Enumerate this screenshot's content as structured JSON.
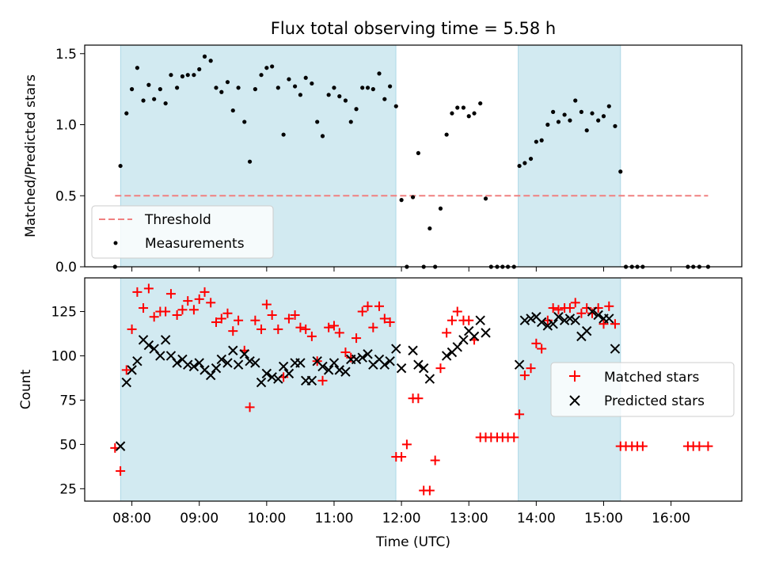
{
  "chart_data": [
    {
      "type": "scatter",
      "panel": "top",
      "title": "Flux total observing time = 5.58 h",
      "xlabel": "",
      "ylabel": "Matched/Predicted stars",
      "xlim": [
        7.3,
        17.05
      ],
      "ylim": [
        0,
        1.56
      ],
      "yticks": [
        0.0,
        0.5,
        1.0,
        1.5
      ],
      "ytick_labels": [
        "0.0",
        "0.5",
        "1.0",
        "1.5"
      ],
      "shaded_regions": [
        [
          7.833,
          11.917
        ],
        [
          13.733,
          15.25
        ]
      ],
      "shade_color": "#add8e6",
      "threshold": {
        "name": "Threshold",
        "y": 0.5,
        "x_range": [
          7.75,
          16.55
        ],
        "color": "#f08080"
      },
      "legend": {
        "location": "lower-left",
        "entries": [
          "Threshold",
          "Measurements"
        ]
      },
      "series": [
        {
          "name": "Measurements",
          "marker": "dot",
          "color": "#000000",
          "x": [
            7.75,
            7.83,
            7.92,
            8.0,
            8.08,
            8.17,
            8.25,
            8.33,
            8.42,
            8.5,
            8.58,
            8.67,
            8.75,
            8.83,
            8.92,
            9.0,
            9.08,
            9.17,
            9.25,
            9.33,
            9.42,
            9.5,
            9.58,
            9.67,
            9.75,
            9.83,
            9.92,
            10.0,
            10.08,
            10.17,
            10.25,
            10.33,
            10.42,
            10.5,
            10.58,
            10.67,
            10.75,
            10.83,
            10.92,
            11.0,
            11.08,
            11.17,
            11.25,
            11.33,
            11.42,
            11.5,
            11.58,
            11.67,
            11.75,
            11.83,
            11.92,
            12.0,
            12.08,
            12.17,
            12.25,
            12.33,
            12.42,
            12.5,
            12.58,
            12.67,
            12.75,
            12.83,
            12.92,
            13.0,
            13.08,
            13.17,
            13.25,
            13.33,
            13.42,
            13.5,
            13.58,
            13.67,
            13.75,
            13.83,
            13.92,
            14.0,
            14.08,
            14.17,
            14.25,
            14.33,
            14.42,
            14.5,
            14.58,
            14.67,
            14.75,
            14.83,
            14.92,
            15.0,
            15.08,
            15.17,
            15.25,
            15.33,
            15.42,
            15.5,
            15.58,
            16.25,
            16.33,
            16.42,
            16.55
          ],
          "values": [
            0.0,
            0.71,
            1.08,
            1.25,
            1.4,
            1.17,
            1.28,
            1.18,
            1.25,
            1.15,
            1.35,
            1.26,
            1.34,
            1.35,
            1.35,
            1.39,
            1.48,
            1.45,
            1.26,
            1.23,
            1.3,
            1.1,
            1.26,
            1.02,
            0.74,
            1.25,
            1.35,
            1.4,
            1.41,
            1.26,
            0.93,
            1.32,
            1.27,
            1.21,
            1.33,
            1.29,
            1.02,
            0.92,
            1.21,
            1.26,
            1.2,
            1.17,
            1.02,
            1.11,
            1.26,
            1.26,
            1.25,
            1.36,
            1.18,
            1.27,
            1.13,
            0.47,
            0.0,
            0.49,
            0.8,
            0.0,
            0.27,
            0.0,
            0.41,
            0.93,
            1.08,
            1.12,
            1.12,
            1.06,
            1.08,
            1.15,
            0.48,
            0.0,
            0.0,
            0.0,
            0.0,
            0.0,
            0.71,
            0.73,
            0.76,
            0.88,
            0.89,
            1.0,
            1.09,
            1.02,
            1.07,
            1.03,
            1.17,
            1.09,
            0.96,
            1.08,
            1.03,
            1.06,
            1.13,
            0.99,
            0.67,
            0.0,
            0.0,
            0.0,
            0.0,
            0.0,
            0.0,
            0.0,
            0.0
          ]
        }
      ]
    },
    {
      "type": "scatter",
      "panel": "bottom",
      "title": "",
      "xlabel": "Time (UTC)",
      "ylabel": "Count",
      "xlim": [
        7.3,
        17.05
      ],
      "ylim": [
        18,
        144
      ],
      "xticks": [
        8,
        9,
        10,
        11,
        12,
        13,
        14,
        15,
        16
      ],
      "xtick_labels": [
        "08:00",
        "09:00",
        "10:00",
        "11:00",
        "12:00",
        "13:00",
        "14:00",
        "15:00",
        "16:00"
      ],
      "yticks": [
        25,
        50,
        75,
        100,
        125
      ],
      "ytick_labels": [
        "25",
        "50",
        "75",
        "100",
        "125"
      ],
      "shaded_regions": [
        [
          7.833,
          11.917
        ],
        [
          13.733,
          15.25
        ]
      ],
      "shade_color": "#add8e6",
      "legend": {
        "location": "center-right",
        "entries": [
          "Matched stars",
          "Predicted stars"
        ]
      },
      "series": [
        {
          "name": "Matched stars",
          "marker": "plus",
          "color": "#ff0000",
          "x": [
            7.75,
            7.83,
            7.92,
            8.0,
            8.08,
            8.17,
            8.25,
            8.33,
            8.42,
            8.5,
            8.58,
            8.67,
            8.75,
            8.83,
            8.92,
            9.0,
            9.08,
            9.17,
            9.25,
            9.33,
            9.42,
            9.5,
            9.58,
            9.67,
            9.75,
            9.83,
            9.92,
            10.0,
            10.08,
            10.17,
            10.25,
            10.33,
            10.42,
            10.5,
            10.58,
            10.67,
            10.75,
            10.83,
            10.92,
            11.0,
            11.08,
            11.17,
            11.25,
            11.33,
            11.42,
            11.5,
            11.58,
            11.67,
            11.75,
            11.83,
            11.92,
            12.0,
            12.08,
            12.17,
            12.25,
            12.33,
            12.42,
            12.5,
            12.58,
            12.67,
            12.75,
            12.83,
            12.92,
            13.0,
            13.08,
            13.17,
            13.25,
            13.33,
            13.42,
            13.5,
            13.58,
            13.67,
            13.75,
            13.83,
            13.92,
            14.0,
            14.08,
            14.17,
            14.25,
            14.33,
            14.42,
            14.5,
            14.58,
            14.67,
            14.75,
            14.83,
            14.92,
            15.0,
            15.08,
            15.17,
            15.25,
            15.33,
            15.42,
            15.5,
            15.58,
            16.25,
            16.33,
            16.42,
            16.55
          ],
          "values": [
            48,
            35,
            92,
            115,
            136,
            127,
            138,
            122,
            125,
            125,
            135,
            123,
            126,
            131,
            126,
            132,
            136,
            130,
            119,
            121,
            124,
            114,
            120,
            103,
            71,
            120,
            115,
            129,
            123,
            115,
            88,
            121,
            123,
            116,
            115,
            111,
            97,
            86,
            116,
            117,
            113,
            102,
            99,
            110,
            125,
            128,
            116,
            128,
            121,
            119,
            43,
            43,
            50,
            76,
            76,
            24,
            24,
            41,
            93,
            113,
            120,
            125,
            120,
            120,
            109,
            54,
            54,
            54,
            54,
            54,
            54,
            54,
            67,
            89,
            93,
            107,
            104,
            120,
            127,
            126,
            127,
            127,
            130,
            124,
            127,
            124,
            127,
            118,
            128,
            118,
            49,
            49,
            49,
            49,
            49,
            49,
            49,
            49,
            49
          ]
        },
        {
          "name": "Predicted stars",
          "marker": "x",
          "color": "#000000",
          "x": [
            7.83,
            7.92,
            8.0,
            8.08,
            8.17,
            8.25,
            8.33,
            8.42,
            8.5,
            8.58,
            8.67,
            8.75,
            8.83,
            8.92,
            9.0,
            9.08,
            9.17,
            9.25,
            9.33,
            9.42,
            9.5,
            9.58,
            9.67,
            9.75,
            9.83,
            9.92,
            10.0,
            10.08,
            10.17,
            10.25,
            10.33,
            10.42,
            10.5,
            10.58,
            10.67,
            10.75,
            10.83,
            10.92,
            11.0,
            11.08,
            11.17,
            11.25,
            11.33,
            11.42,
            11.5,
            11.58,
            11.67,
            11.75,
            11.83,
            11.92,
            12.0,
            12.17,
            12.25,
            12.33,
            12.42,
            12.67,
            12.75,
            12.83,
            12.92,
            13.0,
            13.08,
            13.17,
            13.25,
            13.75,
            13.83,
            13.92,
            14.0,
            14.08,
            14.17,
            14.25,
            14.33,
            14.42,
            14.5,
            14.58,
            14.67,
            14.75,
            14.83,
            14.92,
            15.0,
            15.08,
            15.17
          ],
          "values": [
            49,
            85,
            92,
            97,
            109,
            106,
            104,
            100,
            109,
            100,
            96,
            98,
            95,
            94,
            96,
            92,
            89,
            93,
            98,
            96,
            103,
            95,
            101,
            97,
            96,
            85,
            90,
            88,
            87,
            94,
            90,
            96,
            96,
            86,
            86,
            97,
            94,
            92,
            96,
            92,
            91,
            98,
            98,
            99,
            101,
            95,
            98,
            95,
            97,
            104,
            93,
            103,
            95,
            93,
            87,
            100,
            102,
            105,
            109,
            114,
            111,
            120,
            113,
            95,
            120,
            121,
            122,
            119,
            117,
            118,
            122,
            120,
            121,
            120,
            111,
            114,
            125,
            123,
            121,
            121,
            104
          ]
        }
      ]
    }
  ]
}
